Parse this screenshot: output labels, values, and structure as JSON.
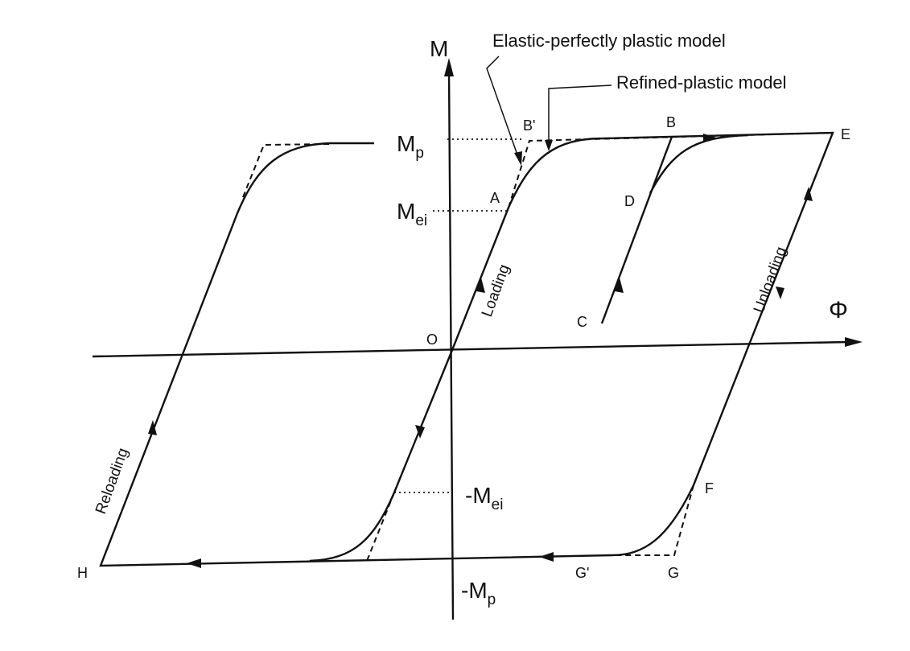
{
  "axes": {
    "y": "M",
    "x": "Φ"
  },
  "legend": {
    "elastic": "Elastic-perfectly plastic model",
    "refined": "Refined-plastic model"
  },
  "levels": {
    "mp": {
      "main": "M",
      "sub": "p"
    },
    "mei": {
      "main": "M",
      "sub": "ei"
    },
    "neg_mei": {
      "main": "-M",
      "sub": "ei"
    },
    "neg_mp": {
      "main": "-M",
      "sub": "p"
    }
  },
  "points": {
    "O": "O",
    "A": "A",
    "B_prime": "B'",
    "B": "B",
    "E": "E",
    "D": "D",
    "C": "C",
    "F": "F",
    "G_prime": "G'",
    "G": "G",
    "H": "H"
  },
  "annotations": {
    "loading": "Loading",
    "unloading": "Unloading",
    "reloading": "Reloading"
  }
}
